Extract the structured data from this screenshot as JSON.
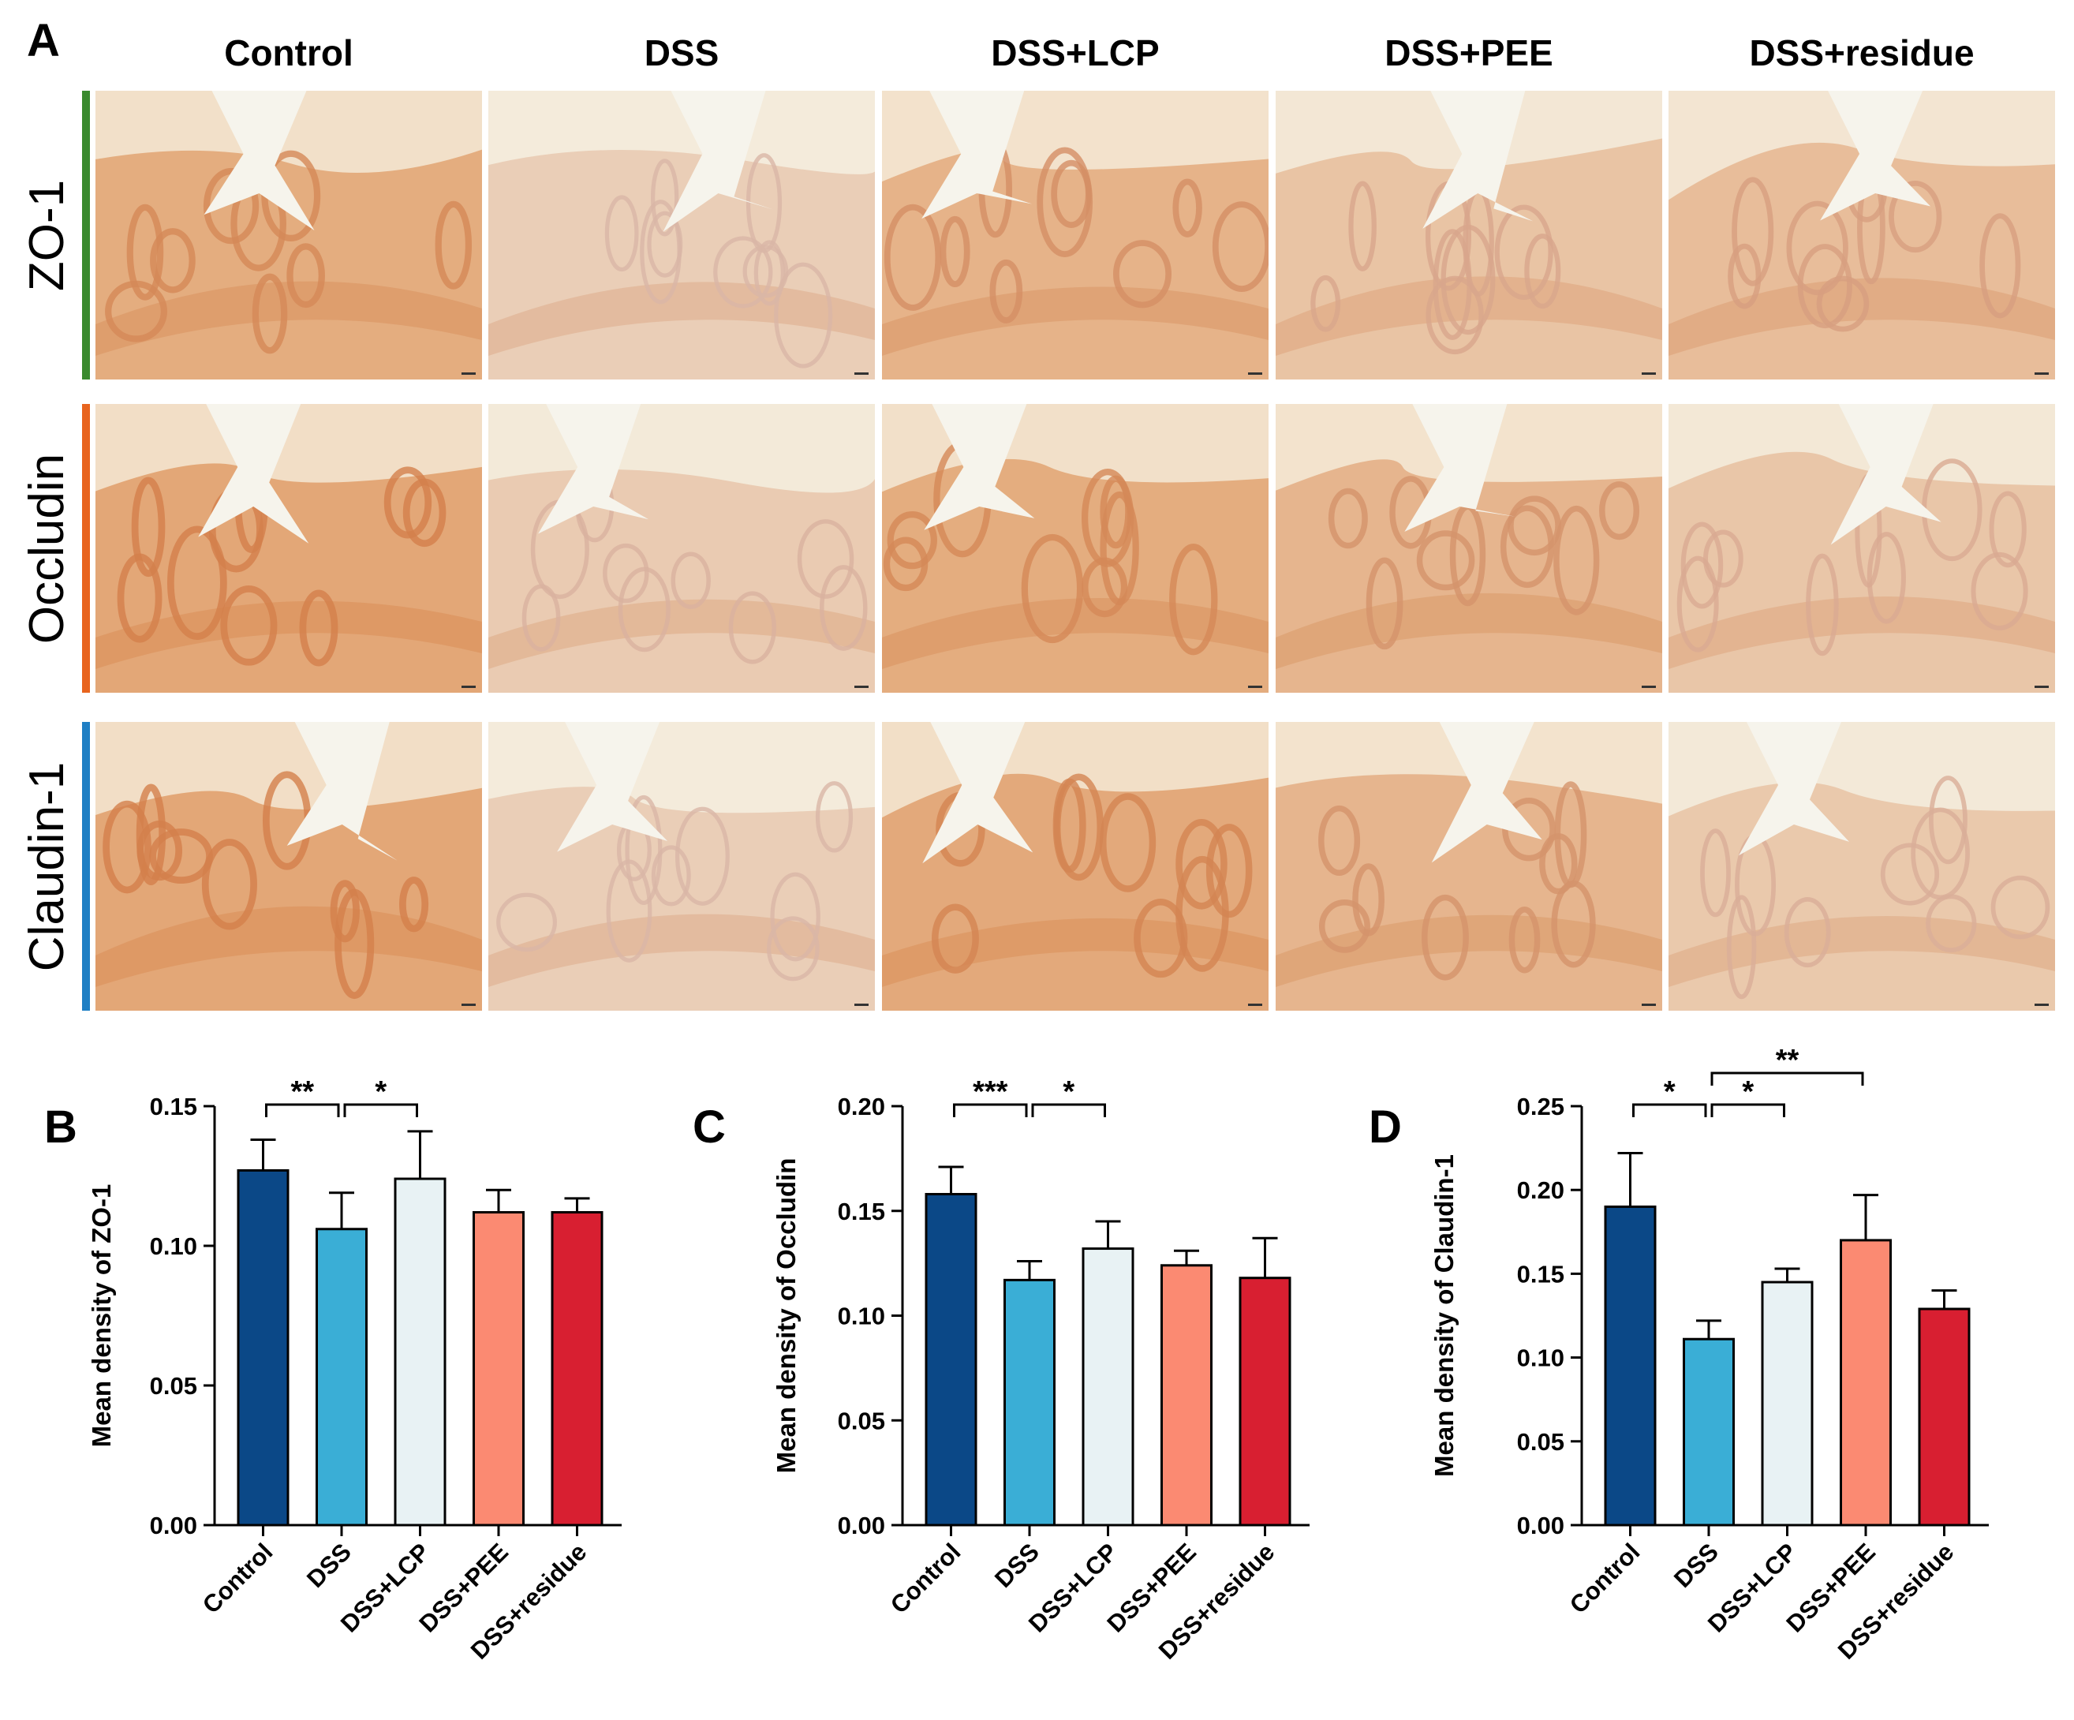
{
  "figure": {
    "panel_a_letter": "A",
    "columns": [
      "Control",
      "DSS",
      "DSS+LCP",
      "DSS+PEE",
      "DSS+residue"
    ],
    "rows": [
      {
        "label": "ZO-1",
        "color": "#3a8a2e"
      },
      {
        "label": "Occludin",
        "color": "#e8641e"
      },
      {
        "label": "Claudin-1",
        "color": "#1f7fc4"
      }
    ],
    "stain_levels": [
      [
        0.85,
        0.25,
        0.75,
        0.45,
        0.55
      ],
      [
        0.95,
        0.3,
        0.85,
        0.7,
        0.4
      ],
      [
        0.95,
        0.25,
        0.9,
        0.7,
        0.35
      ]
    ]
  },
  "colors": {
    "Control": "#0b4887",
    "DSS": "#3aaed6",
    "DSS+LCP": "#e8f2f4",
    "DSS+PEE": "#fb8a72",
    "DSS+residue": "#d81f31"
  },
  "chart_data": [
    {
      "type": "bar",
      "panel": "B",
      "categories": [
        "Control",
        "DSS",
        "DSS+LCP",
        "DSS+PEE",
        "DSS+residue"
      ],
      "values": [
        0.127,
        0.106,
        0.124,
        0.112,
        0.112
      ],
      "errors": [
        0.011,
        0.013,
        0.017,
        0.008,
        0.005
      ],
      "ylabel": "Mean density of ZO-1",
      "ylim": [
        0,
        0.15
      ],
      "yticks": [
        "0.00",
        "0.05",
        "0.10",
        "0.15"
      ],
      "significance": [
        {
          "from": 0,
          "to": 1,
          "label": "**"
        },
        {
          "from": 1,
          "to": 2,
          "label": "*"
        }
      ]
    },
    {
      "type": "bar",
      "panel": "C",
      "categories": [
        "Control",
        "DSS",
        "DSS+LCP",
        "DSS+PEE",
        "DSS+residue"
      ],
      "values": [
        0.158,
        0.117,
        0.132,
        0.124,
        0.118
      ],
      "errors": [
        0.013,
        0.009,
        0.013,
        0.007,
        0.019
      ],
      "ylabel": "Mean density of Occludin",
      "ylim": [
        0,
        0.2
      ],
      "yticks": [
        "0.00",
        "0.05",
        "0.10",
        "0.15",
        "0.20"
      ],
      "significance": [
        {
          "from": 0,
          "to": 1,
          "label": "***"
        },
        {
          "from": 1,
          "to": 2,
          "label": "*"
        }
      ]
    },
    {
      "type": "bar",
      "panel": "D",
      "categories": [
        "Control",
        "DSS",
        "DSS+LCP",
        "DSS+PEE",
        "DSS+residue"
      ],
      "values": [
        0.19,
        0.111,
        0.145,
        0.17,
        0.129
      ],
      "errors": [
        0.032,
        0.011,
        0.008,
        0.027,
        0.011
      ],
      "ylabel": "Mean density of Claudin-1",
      "ylim": [
        0,
        0.25
      ],
      "yticks": [
        "0.00",
        "0.05",
        "0.10",
        "0.15",
        "0.20",
        "0.25"
      ],
      "significance": [
        {
          "from": 0,
          "to": 1,
          "label": "*"
        },
        {
          "from": 1,
          "to": 2,
          "label": "*"
        },
        {
          "from": 1,
          "to": 3,
          "label": "**"
        }
      ]
    }
  ]
}
